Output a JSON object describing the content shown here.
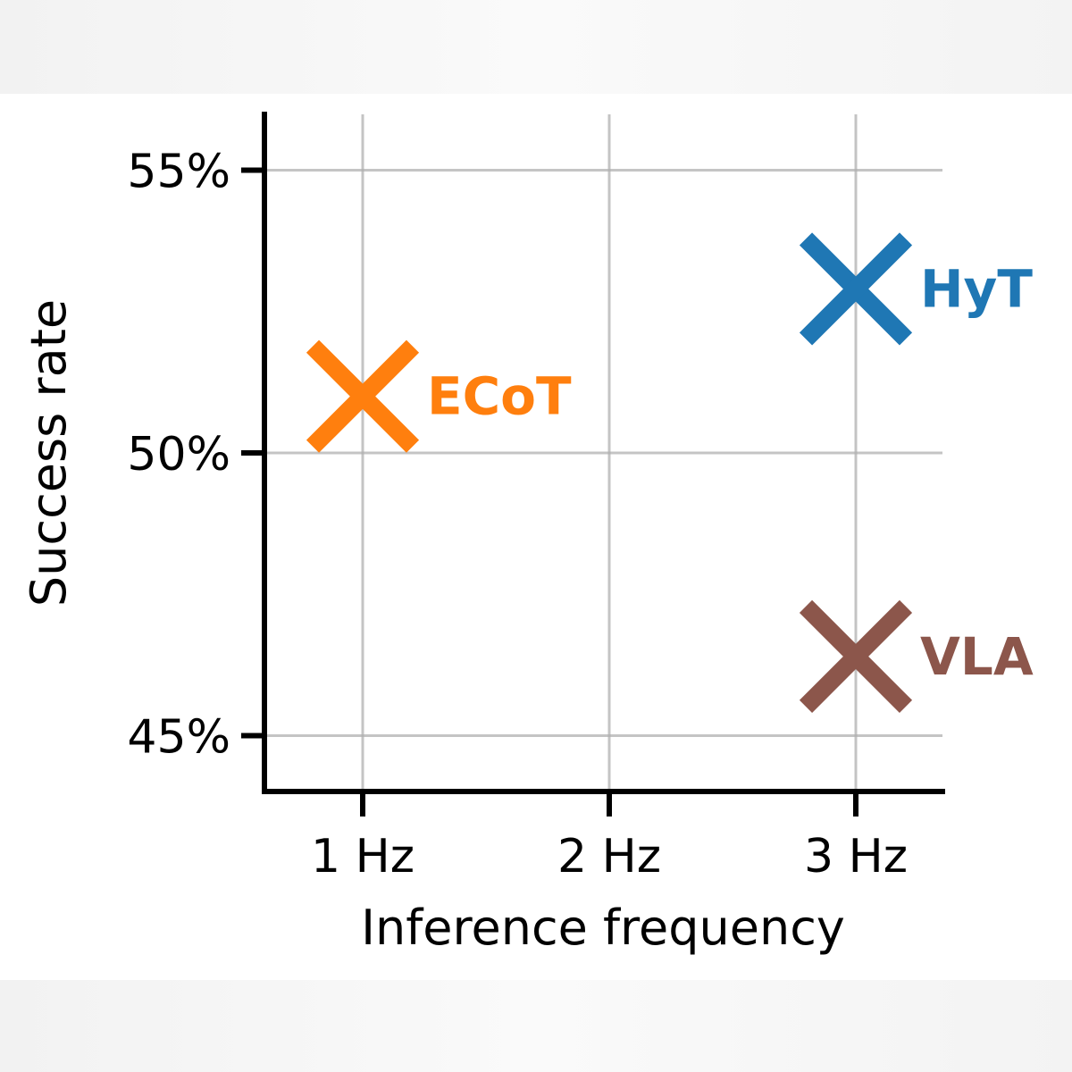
{
  "chart_data": {
    "type": "scatter",
    "xlabel": "Inference frequency",
    "ylabel": "Success rate",
    "x_ticks": [
      "1 Hz",
      "2 Hz",
      "3 Hz"
    ],
    "y_ticks": [
      "45%",
      "50%",
      "55%"
    ],
    "xlim": [
      0.6,
      3.35
    ],
    "ylim": [
      44.0,
      56.0
    ],
    "grid": true,
    "marker": "x",
    "points": [
      {
        "label": "ECoT",
        "x": 1,
        "y": 51.0,
        "color": "#ff7f0e"
      },
      {
        "label": "HyT",
        "x": 3,
        "y": 52.9,
        "color": "#1f77b4"
      },
      {
        "label": "VLA",
        "x": 3,
        "y": 46.4,
        "color": "#8c564b"
      }
    ]
  }
}
